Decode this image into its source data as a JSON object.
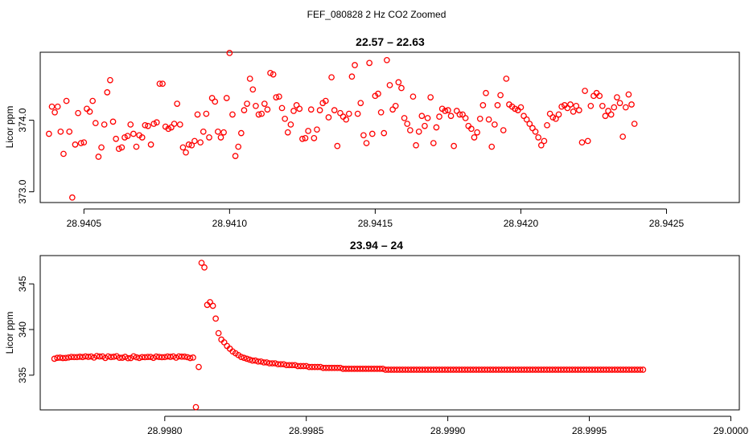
{
  "figure_title": "FEF_080828  2 Hz CO2 Zoomed",
  "colors": {
    "points": "#ff0000",
    "axis": "#000000",
    "background": "#ffffff"
  },
  "chart_data": [
    {
      "type": "scatter",
      "title": "22.57 – 22.63",
      "xlabel": "",
      "ylabel": "Licor ppm",
      "xlim": [
        28.94035,
        28.94275
      ],
      "ylim": [
        372.85,
        374.95
      ],
      "xticks": [
        28.9405,
        28.941,
        28.9415,
        28.942,
        28.9425
      ],
      "xtick_labels": [
        "28.9405",
        "28.9410",
        "28.9415",
        "28.9420",
        "28.9425"
      ],
      "yticks": [
        373,
        374
      ],
      "ytick_labels": [
        "373.0",
        "374.0"
      ],
      "x_start": 28.94038,
      "x_step": 1e-05,
      "y": [
        373.81,
        374.19,
        374.11,
        374.19,
        373.84,
        373.53,
        374.27,
        373.84,
        372.92,
        373.66,
        374.1,
        373.68,
        373.69,
        374.16,
        374.12,
        374.27,
        373.96,
        373.49,
        373.62,
        373.94,
        374.39,
        374.56,
        373.98,
        373.74,
        373.6,
        373.62,
        373.76,
        373.78,
        373.94,
        373.81,
        373.63,
        373.79,
        373.76,
        373.93,
        373.92,
        373.66,
        373.95,
        373.97,
        374.51,
        374.51,
        373.91,
        373.88,
        373.9,
        373.95,
        374.23,
        373.94,
        373.62,
        373.55,
        373.66,
        373.65,
        373.71,
        374.08,
        373.69,
        373.84,
        374.09,
        373.76,
        374.31,
        374.26,
        373.84,
        373.76,
        373.83,
        374.31,
        374.94,
        374.08,
        373.5,
        373.63,
        373.82,
        374.14,
        374.23,
        374.58,
        374.43,
        374.2,
        374.08,
        374.09,
        374.23,
        374.15,
        374.66,
        374.64,
        374.32,
        374.33,
        374.17,
        374.02,
        373.83,
        373.94,
        374.13,
        374.21,
        374.16,
        373.74,
        373.75,
        373.85,
        374.15,
        373.75,
        373.87,
        374.14,
        374.24,
        374.27,
        374.04,
        374.6,
        374.14,
        373.64,
        374.1,
        374.05,
        374.01,
        374.09,
        374.61,
        374.77,
        374.09,
        374.24,
        373.79,
        373.68,
        374.8,
        373.81,
        374.34,
        374.37,
        374.11,
        373.82,
        374.84,
        374.49,
        374.15,
        374.2,
        374.53,
        374.45,
        374.03,
        373.95,
        373.86,
        374.33,
        373.65,
        373.84,
        374.06,
        373.92,
        374.03,
        374.32,
        373.68,
        373.9,
        374.05,
        374.16,
        374.13,
        374.14,
        374.06,
        373.64,
        374.13,
        374.08,
        374.08,
        374.03,
        373.92,
        373.88,
        373.76,
        373.83,
        374.02,
        374.21,
        374.38,
        374.01,
        373.63,
        373.94,
        374.21,
        374.35,
        373.86,
        374.58,
        374.22,
        374.19,
        374.16,
        374.14,
        374.18,
        374.06,
        374.01,
        373.95,
        373.89,
        373.84,
        373.76,
        373.65,
        373.71,
        373.93,
        374.09,
        374.04,
        374.02,
        374.08,
        374.19,
        374.21,
        374.17,
        374.22,
        374.12,
        374.2,
        374.14,
        373.69,
        374.41,
        373.71,
        374.2,
        374.34,
        374.38,
        374.34,
        374.2,
        374.06,
        374.13,
        374.08,
        374.18,
        374.32,
        374.24,
        373.77,
        374.18,
        374.36,
        374.22,
        373.95
      ]
    },
    {
      "type": "scatter",
      "title": "23.94 – 24",
      "xlabel": "",
      "ylabel": "Licor ppm",
      "xlim": [
        28.99756,
        29.00003
      ],
      "ylim": [
        331.2,
        348.1
      ],
      "xticks": [
        28.998,
        28.9985,
        28.999,
        28.9995,
        29.0
      ],
      "xtick_labels": [
        "28.9980",
        "28.9985",
        "28.9990",
        "28.9995",
        "29.0000"
      ],
      "yticks": [
        335,
        340,
        345
      ],
      "ytick_labels": [
        "335",
        "340",
        "345"
      ],
      "x_start": 28.99761,
      "x_step": 1e-05,
      "y": [
        336.8,
        336.9,
        336.92,
        336.88,
        336.89,
        336.94,
        337.0,
        336.98,
        336.98,
        337.02,
        336.99,
        337.06,
        337.01,
        337.05,
        336.93,
        337.1,
        337.05,
        337.06,
        336.89,
        337.06,
        336.99,
        337.02,
        337.08,
        336.91,
        336.91,
        337.01,
        336.86,
        336.88,
        337.07,
        336.96,
        336.89,
        336.98,
        336.97,
        337.0,
        337.0,
        336.9,
        337.04,
        337.0,
        336.97,
        336.98,
        337.05,
        337.01,
        337.06,
        336.92,
        337.06,
        337.03,
        337.03,
        336.97,
        336.88,
        336.93,
        331.5,
        335.9,
        347.3,
        346.8,
        342.7,
        343.0,
        342.6,
        341.2,
        339.6,
        338.9,
        338.6,
        338.2,
        337.9,
        337.6,
        337.4,
        337.2,
        337.0,
        336.9,
        336.8,
        336.7,
        336.6,
        336.6,
        336.5,
        336.5,
        336.4,
        336.4,
        336.3,
        336.3,
        336.3,
        336.2,
        336.2,
        336.2,
        336.1,
        336.1,
        336.1,
        336.1,
        336.0,
        336.0,
        336.0,
        336.0,
        335.9,
        335.9,
        335.9,
        335.9,
        335.9,
        335.8,
        335.8,
        335.8,
        335.8,
        335.8,
        335.8,
        335.8,
        335.7,
        335.7,
        335.7,
        335.7,
        335.7,
        335.7,
        335.7,
        335.7,
        335.7,
        335.7,
        335.7,
        335.7,
        335.7,
        335.7,
        335.7,
        335.6,
        335.6,
        335.6,
        335.6,
        335.6,
        335.6,
        335.6,
        335.6,
        335.6,
        335.6,
        335.6,
        335.6,
        335.6,
        335.6,
        335.6,
        335.6,
        335.6,
        335.6,
        335.6,
        335.6,
        335.6,
        335.6,
        335.6,
        335.6,
        335.6,
        335.6,
        335.6,
        335.6,
        335.6,
        335.6,
        335.6,
        335.6,
        335.6,
        335.6,
        335.6,
        335.6,
        335.6,
        335.6,
        335.6,
        335.6,
        335.6,
        335.6,
        335.6,
        335.6,
        335.6,
        335.6,
        335.6,
        335.6,
        335.6,
        335.6,
        335.6,
        335.6,
        335.6,
        335.6,
        335.6,
        335.6,
        335.6,
        335.6,
        335.6,
        335.6,
        335.6,
        335.6,
        335.6,
        335.6,
        335.6,
        335.6,
        335.6,
        335.6,
        335.6,
        335.6,
        335.6,
        335.6,
        335.6,
        335.6,
        335.6,
        335.6,
        335.6,
        335.6,
        335.6,
        335.6,
        335.6,
        335.6,
        335.6,
        335.6,
        335.6,
        335.6,
        335.6,
        335.6,
        335.6,
        335.6,
        335.6,
        335.6
      ]
    }
  ]
}
